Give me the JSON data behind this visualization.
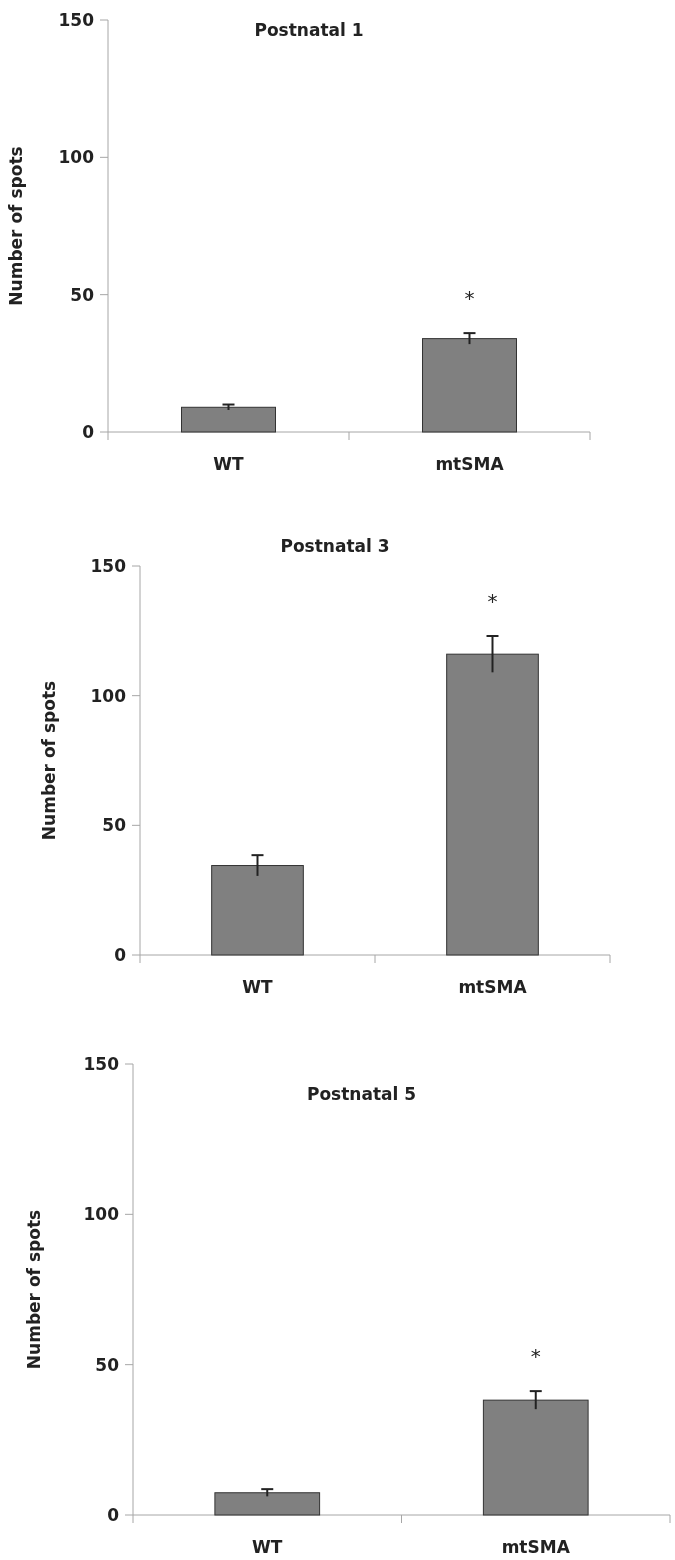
{
  "chart_data": [
    {
      "type": "bar",
      "title": "Postnatal  1",
      "ylabel": "Number of spots",
      "categories": [
        "WT",
        "mtSMA"
      ],
      "values": [
        9,
        34
      ],
      "errors": [
        1,
        2
      ],
      "color": "#808080",
      "ylim": [
        0,
        150
      ],
      "yticks": [
        0,
        50,
        100,
        150
      ],
      "annotations": [
        "*"
      ]
    },
    {
      "type": "bar",
      "title": "Postnatal  3",
      "ylabel": "Number of spots",
      "categories": [
        "WT",
        "mtSMA"
      ],
      "values": [
        34.5,
        116
      ],
      "errors": [
        4,
        7
      ],
      "color": "#808080",
      "ylim": [
        0,
        150
      ],
      "yticks": [
        0,
        50,
        100,
        150
      ],
      "annotations": [
        "*"
      ]
    },
    {
      "type": "bar",
      "title": "Postnatal  5",
      "ylabel": "Number of spots",
      "categories": [
        "WT",
        "mtSMA"
      ],
      "values": [
        7.4,
        38.2
      ],
      "errors": [
        1.2,
        3
      ],
      "color": "#808080",
      "ylim": [
        0,
        150
      ],
      "yticks": [
        0,
        50,
        100,
        150
      ],
      "annotations": [
        "*"
      ]
    }
  ]
}
